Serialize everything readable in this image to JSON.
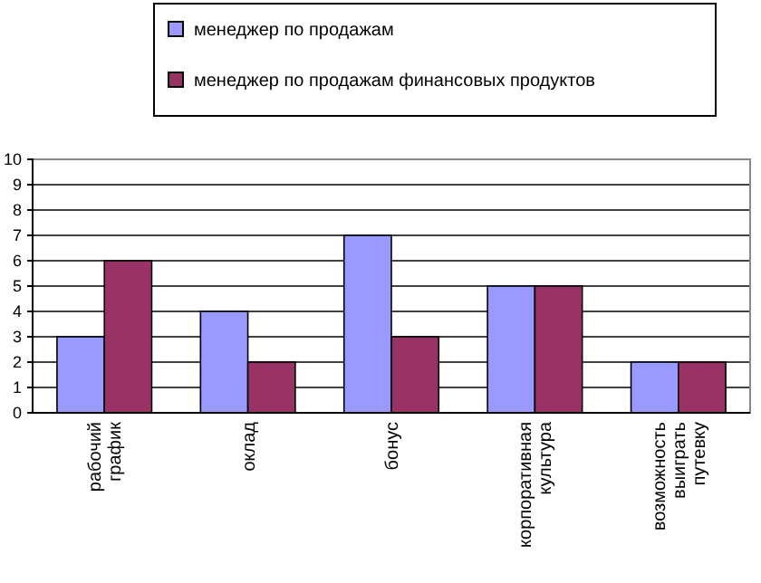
{
  "chart_data": {
    "type": "bar",
    "categories": [
      "рабочий график",
      "оклад",
      "бонус",
      "корпоративная культура",
      "возможность выиграть путевку"
    ],
    "series": [
      {
        "name": "менеджер по продажам",
        "color": "#9999ff",
        "values": [
          3,
          4,
          7,
          5,
          2
        ]
      },
      {
        "name": "менеджер по продажам финансовых продуктов",
        "color": "#993366",
        "values": [
          6,
          2,
          3,
          5,
          2
        ]
      }
    ],
    "ylim": [
      0,
      10
    ],
    "yticks": [
      0,
      1,
      2,
      3,
      4,
      5,
      6,
      7,
      8,
      9,
      10
    ],
    "grid": "y",
    "legend": "top"
  }
}
